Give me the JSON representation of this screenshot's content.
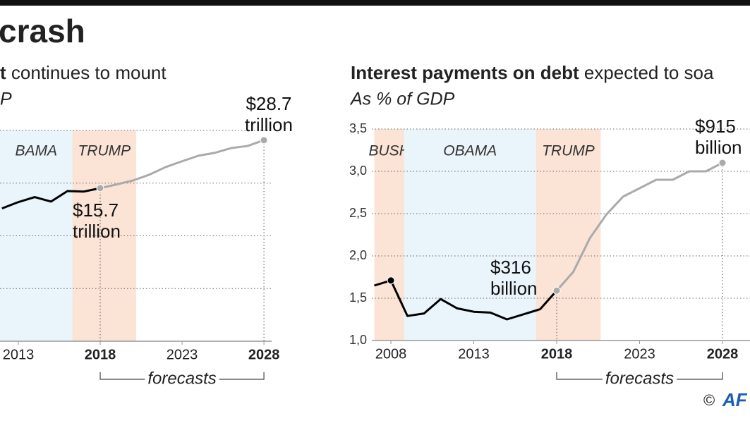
{
  "title": "crash",
  "chart_data": [
    {
      "type": "line",
      "title_bold": "t",
      "title_rest": " continues to mount",
      "subtitle": "P",
      "x": [
        2012,
        2013,
        2014,
        2015,
        2016,
        2017,
        2018,
        2019,
        2020,
        2021,
        2022,
        2023,
        2024,
        2025,
        2026,
        2027,
        2028
      ],
      "series": [
        {
          "color": "#000000",
          "values": [
            70.4,
            72.8,
            74.7,
            73,
            77,
            76.8,
            78.1,
            null,
            null,
            null,
            null,
            null,
            null,
            null,
            null,
            null,
            null
          ]
        },
        {
          "color": "#aaaaaa",
          "values": [
            null,
            null,
            null,
            null,
            null,
            null,
            78.1,
            79.5,
            81,
            83.2,
            86.1,
            88.3,
            90.4,
            91.5,
            93.3,
            94.1,
            96.3
          ]
        }
      ],
      "xlim": [
        2011.88,
        2028.47
      ],
      "xticks": [
        2013,
        2018,
        2023,
        2028
      ],
      "xticks_bold": [
        false,
        true,
        false,
        true
      ],
      "ylim": [
        20,
        100
      ],
      "yticks": [
        20,
        40,
        60,
        80,
        100
      ],
      "grid": true,
      "eras": [
        {
          "label": "BAMA",
          "start": 2009,
          "end": 2016.3,
          "color": "#eaf4fb"
        },
        {
          "label": "TRUMP",
          "start": 2016.3,
          "end": 2020.2,
          "color": "#fbe3d6"
        }
      ],
      "markers": [
        {
          "x": 2018,
          "drop": true
        },
        {
          "x": 2028,
          "drop": true
        }
      ],
      "annotations": [
        {
          "lines": [
            "$28.7",
            "trillion"
          ]
        },
        {
          "lines": [
            "$15.7",
            "trillion"
          ]
        }
      ],
      "forecast_label": "forecasts"
    },
    {
      "type": "line",
      "title_bold": "Interest payments on debt",
      "title_rest": " expected to soa",
      "subtitle": "As % of GDP",
      "x": [
        2007,
        2008,
        2009,
        2010,
        2011,
        2012,
        2013,
        2014,
        2015,
        2016,
        2017,
        2018,
        2019,
        2020,
        2021,
        2022,
        2023,
        2024,
        2025,
        2026,
        2027,
        2028
      ],
      "series": [
        {
          "color": "#000000",
          "values": [
            1.65,
            1.71,
            1.29,
            1.32,
            1.49,
            1.38,
            1.34,
            1.33,
            1.25,
            1.31,
            1.37,
            1.59,
            null,
            null,
            null,
            null,
            null,
            null,
            null,
            null,
            null,
            null
          ]
        },
        {
          "color": "#aaaaaa",
          "values": [
            null,
            null,
            null,
            null,
            null,
            null,
            null,
            null,
            null,
            null,
            null,
            1.59,
            1.81,
            2.21,
            2.49,
            2.7,
            2.8,
            2.9,
            2.9,
            3.0,
            3.0,
            3.1
          ]
        }
      ],
      "xlim": [
        2006.85,
        2029.66
      ],
      "xticks": [
        2008,
        2013,
        2018,
        2023,
        2028
      ],
      "xticks_bold": [
        false,
        false,
        true,
        false,
        true
      ],
      "ylim": [
        1.0,
        3.5
      ],
      "yticks": [
        {
          "value": 1.0,
          "label": "1,0"
        },
        {
          "value": 1.5,
          "label": "1,5"
        },
        {
          "value": 2.0,
          "label": "2,0"
        },
        {
          "value": 2.5,
          "label": "2,5"
        },
        {
          "value": 3.0,
          "label": "3,0"
        },
        {
          "value": 3.5,
          "label": "3,5"
        }
      ],
      "grid": true,
      "eras": [
        {
          "label": "BUSH",
          "start": 2007,
          "end": 2008.8,
          "color": "#fbe3d6"
        },
        {
          "label": "OBAMA",
          "start": 2008.8,
          "end": 2016.75,
          "color": "#eaf4fb"
        },
        {
          "label": "TRUMP",
          "start": 2016.75,
          "end": 2020.65,
          "color": "#fbe3d6"
        }
      ],
      "markers": [
        {
          "x": 2008,
          "drop": false
        },
        {
          "x": 2018,
          "drop": true
        },
        {
          "x": 2028,
          "drop": true
        }
      ],
      "annotations": [
        {
          "lines": [
            "$316",
            "billion"
          ]
        },
        {
          "lines": [
            "$915",
            "billion"
          ]
        }
      ],
      "forecast_label": "forecasts"
    }
  ],
  "credit": "©",
  "logo": "AF"
}
